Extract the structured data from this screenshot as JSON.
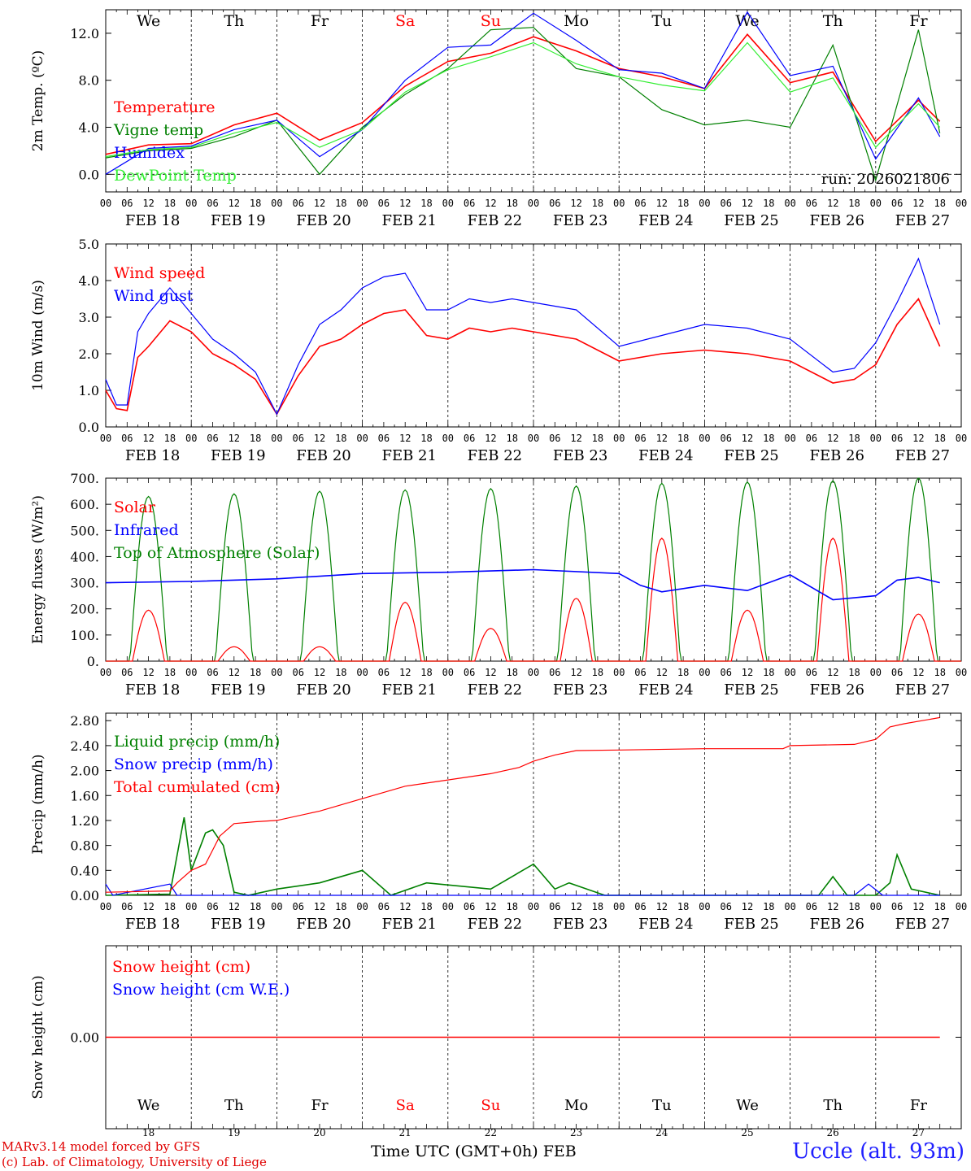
{
  "run_label": "run: 2026021806",
  "days": [
    "We",
    "Th",
    "Fr",
    "Sa",
    "Su",
    "Mo",
    "Tu",
    "We",
    "Th",
    "Fr"
  ],
  "weekend_days": [
    3,
    4
  ],
  "dates": [
    "FEB 18",
    "FEB 19",
    "FEB 20",
    "FEB 21",
    "FEB 22",
    "FEB 23",
    "FEB 24",
    "FEB 25",
    "FEB 26",
    "FEB 27"
  ],
  "day_numbers": [
    "18",
    "19",
    "20",
    "21",
    "22",
    "23",
    "24",
    "25",
    "26",
    "27"
  ],
  "hour_ticks": [
    "00",
    "06",
    "12",
    "18"
  ],
  "final_hour_tick": "00",
  "footer": {
    "line1": "MARv3.14 model forced by GFS",
    "line2": "(c) Lab. of Climatology, University of Liege",
    "axis_title": "Time UTC (GMT+0h) FEB",
    "station": "Uccle (alt. 93m)"
  },
  "colors": {
    "red": "#ff0000",
    "green": "#008000",
    "blue": "#0000ff",
    "lightgreen": "#33ee33"
  },
  "chart_data": [
    {
      "type": "line",
      "ylabel": "2m Temp. (ºC)",
      "ylim": [
        -1.5,
        14.0
      ],
      "yticks": [
        "0.0",
        "4.0",
        "8.0",
        "12.0"
      ],
      "ytick_values": [
        0,
        4,
        8,
        12
      ],
      "x_hours": [
        0,
        12,
        24,
        36,
        48,
        60,
        72,
        84,
        96,
        108,
        120,
        132,
        144,
        156,
        168,
        180,
        192,
        204,
        216,
        228,
        234
      ],
      "series": [
        {
          "name": "Temperature",
          "color": "red",
          "values": [
            1.7,
            2.5,
            2.6,
            4.2,
            5.2,
            2.9,
            4.4,
            7.5,
            9.6,
            10.3,
            11.7,
            10.5,
            9.0,
            8.3,
            7.3,
            11.9,
            7.8,
            8.7,
            2.8,
            6.3,
            4.5
          ]
        },
        {
          "name": "Vigne temp",
          "color": "green",
          "values": [
            1.4,
            2.0,
            2.2,
            3.2,
            4.6,
            0.0,
            4.0,
            6.8,
            9.0,
            12.3,
            12.5,
            9.0,
            8.3,
            5.5,
            4.2,
            4.6,
            4.0,
            11.0,
            -0.5,
            12.3,
            3.5
          ]
        },
        {
          "name": "Humidex",
          "color": "blue",
          "values": [
            0.0,
            2.2,
            2.4,
            3.8,
            4.6,
            1.5,
            3.8,
            8.0,
            10.8,
            11.0,
            13.7,
            11.4,
            8.9,
            8.6,
            7.3,
            13.8,
            8.4,
            9.2,
            1.3,
            6.5,
            3.2
          ]
        },
        {
          "name": "DewPoint Temp",
          "color": "lightgreen",
          "values": [
            1.5,
            2.1,
            2.3,
            3.5,
            4.4,
            2.3,
            3.8,
            7.0,
            8.9,
            10.0,
            11.2,
            9.4,
            8.3,
            7.6,
            7.1,
            11.2,
            7.0,
            8.2,
            2.3,
            6.0,
            4.0
          ]
        }
      ]
    },
    {
      "type": "line",
      "ylabel": "10m Wind (m/s)",
      "ylim": [
        0.0,
        5.0
      ],
      "yticks": [
        "0.0",
        "1.0",
        "2.0",
        "3.0",
        "4.0",
        "5.0"
      ],
      "ytick_values": [
        0,
        1,
        2,
        3,
        4,
        5
      ],
      "x_hours": [
        0,
        3,
        6,
        9,
        12,
        18,
        24,
        30,
        36,
        42,
        48,
        54,
        60,
        66,
        72,
        78,
        84,
        90,
        96,
        102,
        108,
        114,
        120,
        132,
        144,
        156,
        168,
        180,
        192,
        204,
        210,
        216,
        222,
        228,
        234
      ],
      "series": [
        {
          "name": "Wind speed",
          "color": "red",
          "values": [
            1.0,
            0.5,
            0.45,
            1.9,
            2.2,
            2.9,
            2.6,
            2.0,
            1.7,
            1.3,
            0.35,
            1.4,
            2.2,
            2.4,
            2.8,
            3.1,
            3.2,
            2.5,
            2.4,
            2.7,
            2.6,
            2.7,
            2.6,
            2.4,
            1.8,
            2.0,
            2.1,
            2.0,
            1.8,
            1.2,
            1.3,
            1.7,
            2.8,
            3.5,
            2.2
          ]
        },
        {
          "name": "Wind gust",
          "color": "blue",
          "values": [
            1.3,
            0.6,
            0.6,
            2.6,
            3.1,
            3.8,
            3.1,
            2.4,
            2.0,
            1.5,
            0.35,
            1.7,
            2.8,
            3.2,
            3.8,
            4.1,
            4.2,
            3.2,
            3.2,
            3.5,
            3.4,
            3.5,
            3.4,
            3.2,
            2.2,
            2.5,
            2.8,
            2.7,
            2.4,
            1.5,
            1.6,
            2.3,
            3.4,
            4.6,
            2.8
          ]
        }
      ]
    },
    {
      "type": "line",
      "ylabel": "Energy fluxes (W/m²)",
      "ylim": [
        0,
        700
      ],
      "yticks": [
        "0.",
        "100.",
        "200.",
        "300.",
        "400.",
        "500.",
        "600.",
        "700."
      ],
      "ytick_values": [
        0,
        100,
        200,
        300,
        400,
        500,
        600,
        700
      ],
      "solar_peaks": [
        195,
        55,
        55,
        225,
        125,
        240,
        470,
        195,
        470,
        180
      ],
      "toa_peaks": [
        630,
        640,
        650,
        655,
        660,
        670,
        680,
        685,
        690,
        700
      ],
      "series": [
        {
          "name": "Solar",
          "color": "red"
        },
        {
          "name": "Infrared",
          "color": "blue",
          "x_hours": [
            0,
            24,
            48,
            72,
            96,
            120,
            144,
            150,
            156,
            168,
            180,
            192,
            204,
            216,
            222,
            228,
            234
          ],
          "values": [
            300,
            305,
            315,
            335,
            340,
            350,
            335,
            290,
            265,
            290,
            270,
            330,
            235,
            250,
            310,
            320,
            300
          ]
        },
        {
          "name": "Top of Atmosphere (Solar)",
          "color": "green"
        }
      ]
    },
    {
      "type": "line",
      "ylabel": "Precip (mm/h)",
      "ylim": [
        0.0,
        2.92
      ],
      "yticks": [
        "0.00",
        "0.40",
        "0.80",
        "1.20",
        "1.60",
        "2.00",
        "2.40",
        "2.80"
      ],
      "ytick_values": [
        0,
        0.4,
        0.8,
        1.2,
        1.6,
        2.0,
        2.4,
        2.8
      ],
      "series": [
        {
          "name": "Liquid precip (mm/h)",
          "color": "green",
          "x_hours": [
            0,
            18,
            22,
            24,
            28,
            30,
            33,
            36,
            40,
            48,
            60,
            72,
            80,
            90,
            108,
            120,
            126,
            130,
            140,
            160,
            170,
            180,
            200,
            204,
            208,
            216,
            220,
            222,
            226,
            234
          ],
          "values": [
            0.0,
            0.02,
            1.25,
            0.4,
            1.0,
            1.05,
            0.8,
            0.05,
            0.0,
            0.1,
            0.2,
            0.4,
            0.0,
            0.2,
            0.1,
            0.5,
            0.1,
            0.2,
            0.0,
            0.0,
            0.0,
            0.0,
            0.0,
            0.3,
            0.0,
            0.0,
            0.2,
            0.65,
            0.1,
            0.0
          ]
        },
        {
          "name": "Snow precip (mm/h)",
          "color": "blue",
          "x_hours": [
            0,
            2,
            18,
            20,
            24,
            210,
            214,
            218,
            234
          ],
          "values": [
            0.18,
            0.0,
            0.18,
            0.0,
            0.0,
            0.0,
            0.18,
            0.0,
            0.0
          ]
        },
        {
          "name": "Total cumulated (cm)",
          "color": "red",
          "x_hours": [
            0,
            18,
            20,
            24,
            28,
            32,
            36,
            42,
            48,
            60,
            72,
            84,
            96,
            108,
            116,
            120,
            126,
            132,
            144,
            168,
            190,
            192,
            210,
            216,
            220,
            224,
            234
          ],
          "values": [
            0.05,
            0.07,
            0.2,
            0.4,
            0.5,
            0.95,
            1.15,
            1.18,
            1.2,
            1.35,
            1.55,
            1.75,
            1.85,
            1.95,
            2.05,
            2.15,
            2.25,
            2.32,
            2.33,
            2.35,
            2.35,
            2.4,
            2.42,
            2.5,
            2.7,
            2.75,
            2.85
          ]
        }
      ]
    },
    {
      "type": "line",
      "ylabel": "Snow height (cm)",
      "ylim": [
        -1.0,
        1.0
      ],
      "yticks": [
        "0.00"
      ],
      "ytick_values": [
        0
      ],
      "series": [
        {
          "name": "Snow height (cm)",
          "color": "red",
          "x_hours": [
            0,
            234
          ],
          "values": [
            0.0,
            0.0
          ]
        },
        {
          "name": "Snow height (cm W.E.)",
          "color": "blue",
          "x_hours": [
            0,
            234
          ],
          "values": [
            0.0,
            0.0
          ]
        }
      ]
    }
  ]
}
